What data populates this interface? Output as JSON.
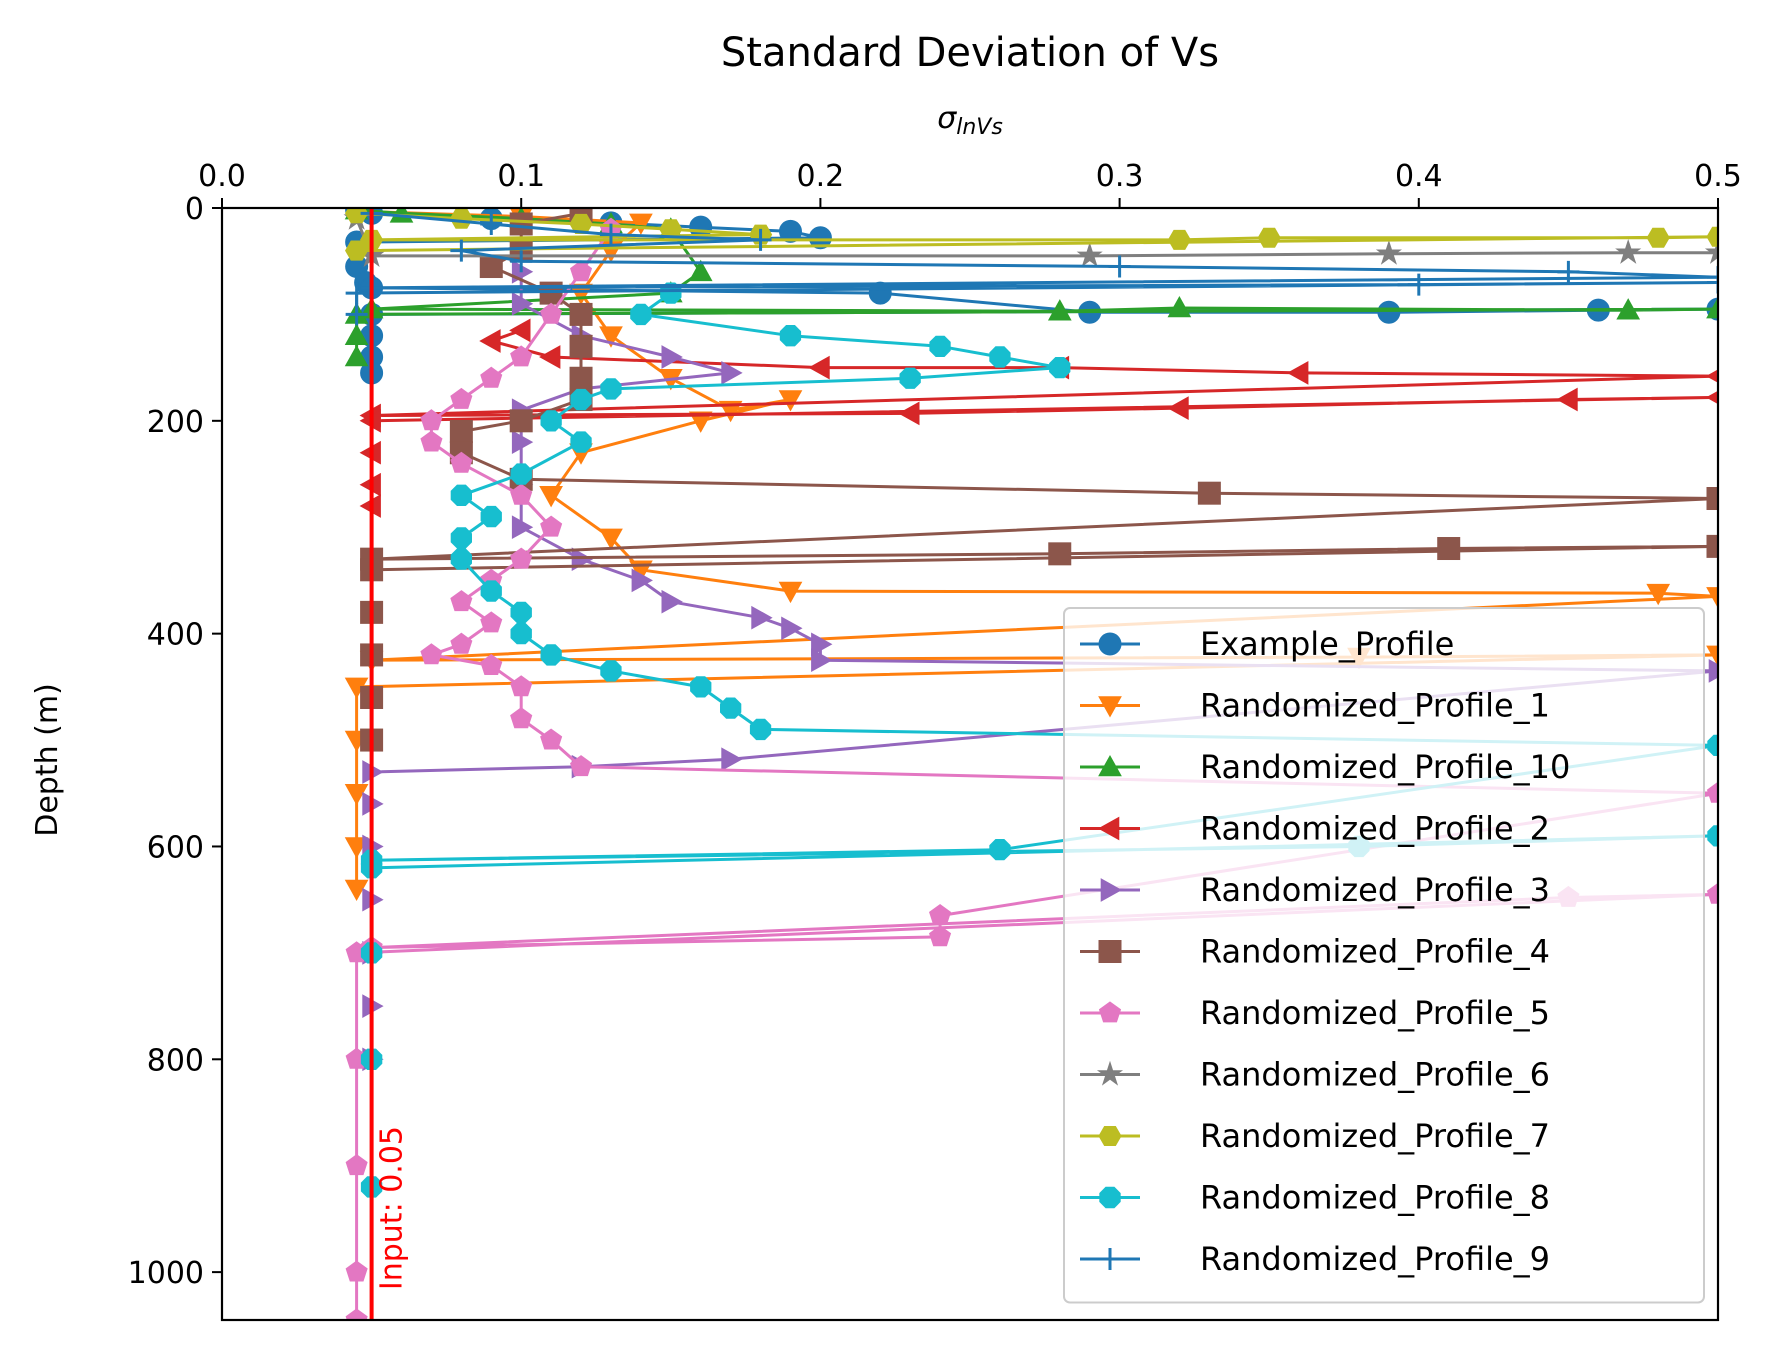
{
  "chart_data": {
    "type": "line",
    "title": "Standard Deviation of Vs",
    "xlabel_sigma": "σ",
    "xlabel_sub": "lnVs",
    "ylabel": "Depth (m)",
    "xlim": [
      0.0,
      0.5
    ],
    "ylim": [
      1045,
      0
    ],
    "x_axis_position": "top",
    "y_inverted": true,
    "grid": false,
    "xticks": [
      0.0,
      0.1,
      0.2,
      0.3,
      0.4,
      0.5
    ],
    "xtick_labels": [
      "0.0",
      "0.1",
      "0.2",
      "0.3",
      "0.4",
      "0.5"
    ],
    "yticks": [
      0,
      200,
      400,
      600,
      800,
      1000
    ],
    "ytick_labels": [
      "0",
      "200",
      "400",
      "600",
      "800",
      "1000"
    ],
    "legend_position": "lower-right",
    "reference_line": {
      "x": 0.05,
      "label": "Input: 0.05",
      "color": "#ff0000"
    },
    "series": [
      {
        "name": "Example_Profile",
        "color": "#1f77b4",
        "marker": "circle",
        "points": [
          [
            0.045,
            2
          ],
          [
            0.05,
            5
          ],
          [
            0.09,
            10
          ],
          [
            0.13,
            14
          ],
          [
            0.16,
            18
          ],
          [
            0.19,
            22
          ],
          [
            0.2,
            28
          ],
          [
            0.045,
            32
          ],
          [
            0.045,
            55
          ],
          [
            0.048,
            70
          ],
          [
            0.05,
            75
          ],
          [
            0.22,
            80
          ],
          [
            0.29,
            98
          ],
          [
            0.39,
            98
          ],
          [
            0.46,
            96
          ],
          [
            0.5,
            95
          ],
          [
            0.05,
            100
          ],
          [
            0.05,
            120
          ],
          [
            0.05,
            140
          ],
          [
            0.05,
            155
          ]
        ]
      },
      {
        "name": "Randomized_Profile_1",
        "color": "#ff7f0e",
        "marker": "triangle-down",
        "points": [
          [
            0.045,
            3
          ],
          [
            0.1,
            8
          ],
          [
            0.14,
            14
          ],
          [
            0.13,
            40
          ],
          [
            0.12,
            80
          ],
          [
            0.13,
            120
          ],
          [
            0.15,
            160
          ],
          [
            0.17,
            190
          ],
          [
            0.19,
            180
          ],
          [
            0.16,
            200
          ],
          [
            0.12,
            230
          ],
          [
            0.11,
            270
          ],
          [
            0.13,
            310
          ],
          [
            0.14,
            340
          ],
          [
            0.19,
            360
          ],
          [
            0.48,
            362
          ],
          [
            0.5,
            365
          ],
          [
            0.05,
            425
          ],
          [
            0.38,
            422
          ],
          [
            0.5,
            420
          ],
          [
            0.045,
            450
          ],
          [
            0.045,
            500
          ],
          [
            0.045,
            550
          ],
          [
            0.045,
            600
          ],
          [
            0.045,
            640
          ]
        ]
      },
      {
        "name": "Randomized_Profile_10",
        "color": "#2ca02c",
        "marker": "triangle-up",
        "points": [
          [
            0.045,
            2
          ],
          [
            0.06,
            5
          ],
          [
            0.1,
            10
          ],
          [
            0.13,
            15
          ],
          [
            0.15,
            20
          ],
          [
            0.16,
            60
          ],
          [
            0.15,
            80
          ],
          [
            0.05,
            95
          ],
          [
            0.28,
            97
          ],
          [
            0.32,
            94
          ],
          [
            0.47,
            96
          ],
          [
            0.5,
            95
          ],
          [
            0.045,
            100
          ],
          [
            0.045,
            120
          ],
          [
            0.045,
            140
          ]
        ]
      },
      {
        "name": "Randomized_Profile_2",
        "color": "#d62728",
        "marker": "triangle-left",
        "points": [
          [
            0.1,
            115
          ],
          [
            0.09,
            125
          ],
          [
            0.11,
            140
          ],
          [
            0.2,
            150
          ],
          [
            0.28,
            150
          ],
          [
            0.36,
            155
          ],
          [
            0.5,
            158
          ],
          [
            0.05,
            195
          ],
          [
            0.23,
            193
          ],
          [
            0.32,
            188
          ],
          [
            0.45,
            180
          ],
          [
            0.5,
            178
          ],
          [
            0.05,
            200
          ],
          [
            0.05,
            230
          ],
          [
            0.05,
            260
          ],
          [
            0.05,
            280
          ]
        ]
      },
      {
        "name": "Randomized_Profile_3",
        "color": "#9467bd",
        "marker": "triangle-right",
        "points": [
          [
            0.1,
            60
          ],
          [
            0.1,
            90
          ],
          [
            0.12,
            120
          ],
          [
            0.15,
            140
          ],
          [
            0.17,
            155
          ],
          [
            0.12,
            170
          ],
          [
            0.1,
            190
          ],
          [
            0.1,
            220
          ],
          [
            0.1,
            260
          ],
          [
            0.1,
            300
          ],
          [
            0.12,
            330
          ],
          [
            0.14,
            350
          ],
          [
            0.15,
            370
          ],
          [
            0.18,
            385
          ],
          [
            0.19,
            395
          ],
          [
            0.2,
            410
          ],
          [
            0.2,
            425
          ],
          [
            0.5,
            435
          ],
          [
            0.17,
            518
          ],
          [
            0.12,
            525
          ],
          [
            0.05,
            530
          ],
          [
            0.05,
            560
          ],
          [
            0.05,
            600
          ],
          [
            0.05,
            650
          ],
          [
            0.05,
            700
          ],
          [
            0.05,
            750
          ],
          [
            0.05,
            800
          ]
        ]
      },
      {
        "name": "Randomized_Profile_4",
        "color": "#8c564b",
        "marker": "square",
        "points": [
          [
            0.12,
            5
          ],
          [
            0.1,
            15
          ],
          [
            0.1,
            40
          ],
          [
            0.09,
            55
          ],
          [
            0.11,
            80
          ],
          [
            0.12,
            100
          ],
          [
            0.12,
            130
          ],
          [
            0.12,
            160
          ],
          [
            0.12,
            180
          ],
          [
            0.1,
            200
          ],
          [
            0.08,
            210
          ],
          [
            0.08,
            230
          ],
          [
            0.1,
            255
          ],
          [
            0.33,
            268
          ],
          [
            0.5,
            273
          ],
          [
            0.05,
            330
          ],
          [
            0.28,
            325
          ],
          [
            0.41,
            320
          ],
          [
            0.5,
            318
          ],
          [
            0.05,
            340
          ],
          [
            0.05,
            380
          ],
          [
            0.05,
            420
          ],
          [
            0.05,
            460
          ],
          [
            0.05,
            500
          ]
        ]
      },
      {
        "name": "Randomized_Profile_5",
        "color": "#e377c2",
        "marker": "pentagon",
        "points": [
          [
            0.13,
            20
          ],
          [
            0.12,
            60
          ],
          [
            0.11,
            100
          ],
          [
            0.1,
            140
          ],
          [
            0.09,
            160
          ],
          [
            0.08,
            180
          ],
          [
            0.07,
            200
          ],
          [
            0.07,
            220
          ],
          [
            0.08,
            240
          ],
          [
            0.1,
            270
          ],
          [
            0.11,
            300
          ],
          [
            0.1,
            330
          ],
          [
            0.09,
            350
          ],
          [
            0.08,
            370
          ],
          [
            0.09,
            390
          ],
          [
            0.08,
            410
          ],
          [
            0.07,
            420
          ],
          [
            0.09,
            430
          ],
          [
            0.1,
            450
          ],
          [
            0.1,
            480
          ],
          [
            0.11,
            500
          ],
          [
            0.12,
            525
          ],
          [
            0.5,
            550
          ],
          [
            0.24,
            665
          ],
          [
            0.24,
            685
          ],
          [
            0.05,
            695
          ],
          [
            0.45,
            648
          ],
          [
            0.5,
            645
          ],
          [
            0.045,
            700
          ],
          [
            0.045,
            800
          ],
          [
            0.045,
            900
          ],
          [
            0.045,
            1000
          ],
          [
            0.045,
            1045
          ]
        ]
      },
      {
        "name": "Randomized_Profile_6",
        "color": "#7f7f7f",
        "marker": "star",
        "points": [
          [
            0.045,
            10
          ],
          [
            0.05,
            45
          ],
          [
            0.29,
            45
          ],
          [
            0.39,
            43
          ],
          [
            0.47,
            42
          ],
          [
            0.5,
            42
          ]
        ]
      },
      {
        "name": "Randomized_Profile_7",
        "color": "#bcbd22",
        "marker": "hexagon",
        "points": [
          [
            0.045,
            5
          ],
          [
            0.08,
            10
          ],
          [
            0.12,
            15
          ],
          [
            0.15,
            20
          ],
          [
            0.18,
            25
          ],
          [
            0.05,
            30
          ],
          [
            0.32,
            30
          ],
          [
            0.35,
            28
          ],
          [
            0.48,
            28
          ],
          [
            0.5,
            27
          ],
          [
            0.045,
            40
          ]
        ]
      },
      {
        "name": "Randomized_Profile_8",
        "color": "#17becf",
        "marker": "octagon",
        "points": [
          [
            0.15,
            80
          ],
          [
            0.14,
            100
          ],
          [
            0.19,
            120
          ],
          [
            0.24,
            130
          ],
          [
            0.26,
            140
          ],
          [
            0.28,
            150
          ],
          [
            0.23,
            160
          ],
          [
            0.13,
            170
          ],
          [
            0.12,
            180
          ],
          [
            0.11,
            200
          ],
          [
            0.12,
            220
          ],
          [
            0.1,
            250
          ],
          [
            0.08,
            270
          ],
          [
            0.09,
            290
          ],
          [
            0.08,
            310
          ],
          [
            0.08,
            330
          ],
          [
            0.09,
            360
          ],
          [
            0.1,
            380
          ],
          [
            0.1,
            400
          ],
          [
            0.11,
            420
          ],
          [
            0.13,
            435
          ],
          [
            0.16,
            450
          ],
          [
            0.17,
            470
          ],
          [
            0.18,
            490
          ],
          [
            0.5,
            505
          ],
          [
            0.26,
            603
          ],
          [
            0.05,
            613
          ],
          [
            0.38,
            600
          ],
          [
            0.5,
            590
          ],
          [
            0.05,
            620
          ],
          [
            0.05,
            700
          ],
          [
            0.05,
            800
          ],
          [
            0.05,
            920
          ]
        ]
      },
      {
        "name": "Randomized_Profile_9",
        "color": "#1f77b4",
        "marker": "plus",
        "points": [
          [
            0.05,
            5
          ],
          [
            0.09,
            15
          ],
          [
            0.13,
            25
          ],
          [
            0.18,
            30
          ],
          [
            0.08,
            40
          ],
          [
            0.1,
            50
          ],
          [
            0.3,
            55
          ],
          [
            0.45,
            60
          ],
          [
            0.5,
            65
          ],
          [
            0.05,
            75
          ],
          [
            0.4,
            72
          ],
          [
            0.5,
            70
          ],
          [
            0.045,
            80
          ],
          [
            0.045,
            100
          ]
        ]
      }
    ]
  }
}
